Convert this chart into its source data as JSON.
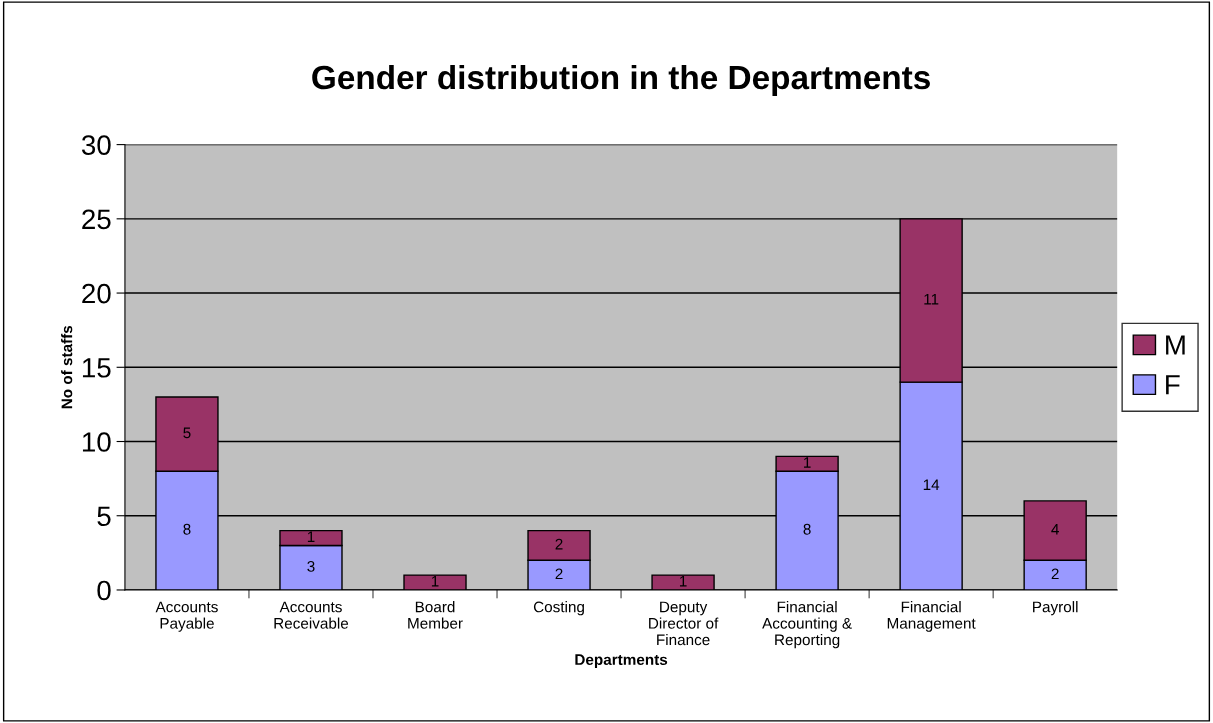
{
  "chart_data": {
    "type": "bar",
    "title": "Gender distribution in the Departments",
    "xlabel": "Departments",
    "ylabel": "No of staffs",
    "categories": [
      "Accounts\nPayable",
      "Accounts\nReceivable",
      "Board\nMember",
      "Costing",
      "Deputy\nDirector of\nFinance",
      "Financial\nAccounting &\nReporting",
      "Financial\nManagement",
      "Payroll"
    ],
    "stacked": true,
    "series": [
      {
        "name": "F",
        "color": "#9999ff",
        "values": [
          8,
          3,
          0,
          2,
          0,
          8,
          14,
          2
        ],
        "value_labels": [
          "8",
          "3",
          null,
          "2",
          null,
          "8",
          "14",
          "2"
        ]
      },
      {
        "name": "M",
        "color": "#993366",
        "values": [
          5,
          1,
          1,
          2,
          1,
          1,
          11,
          4
        ],
        "value_labels": [
          "5",
          "1",
          "1",
          "2",
          "1",
          "1",
          "11",
          "4"
        ]
      }
    ],
    "ylim": [
      0,
      30
    ],
    "yticks": [
      0,
      5,
      10,
      15,
      20,
      25,
      30
    ],
    "grid": "y",
    "legend": "right"
  }
}
